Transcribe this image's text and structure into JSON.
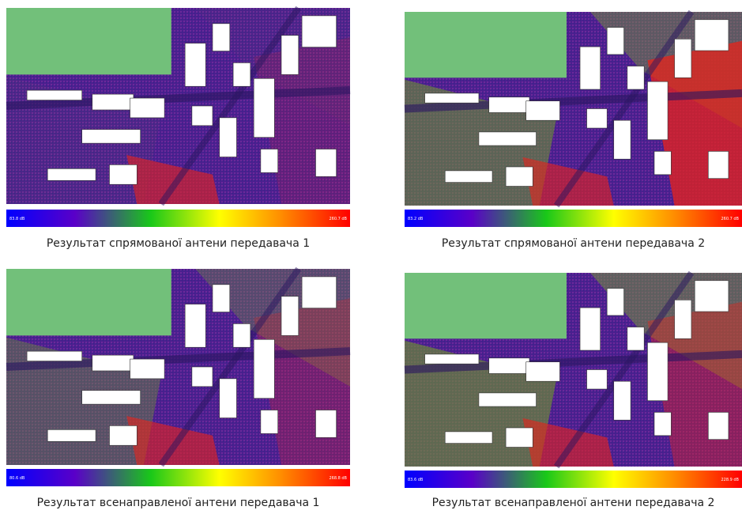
{
  "panels": [
    {
      "caption": "Результат спрямованої антени передавача 1",
      "scale_min": "83.8 dB",
      "scale_max": "260.7 dB"
    },
    {
      "caption": "Результат спрямованої антени передавача 2",
      "scale_min": "83.2 dB",
      "scale_max": "260.7 dB"
    },
    {
      "caption": "Результат всенаправленої антени передавача 1",
      "scale_min": "80.6 dB",
      "scale_max": "268.8 dB"
    },
    {
      "caption": "Результат всенаправленої антени передавача 2",
      "scale_min": "83.6 dB",
      "scale_max": "228.9 dB"
    }
  ]
}
